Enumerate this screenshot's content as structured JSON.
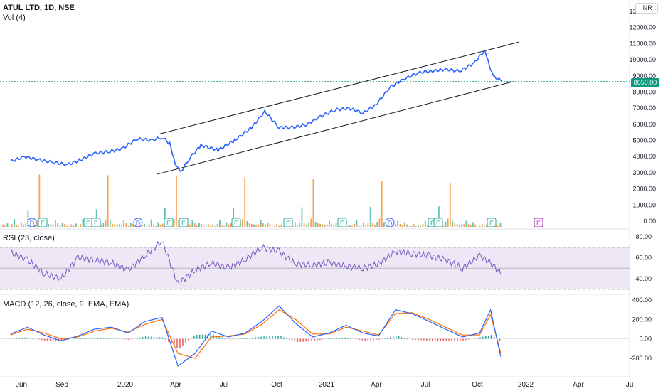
{
  "header": {
    "title": "ATUL LTD, 1D, NSE",
    "volume_label": "Vol (4)",
    "currency": "INR"
  },
  "price_tag": "8650.00",
  "rsi_label": "RSI (23, close)",
  "macd_label": "MACD (12, 26, close, 9, EMA, EMA)",
  "colors": {
    "price_line": "#2962ff",
    "channel": "#131722",
    "rsi_line": "#7e57c2",
    "rsi_band": "#ede7f6",
    "macd_line": "#2962ff",
    "signal_line": "#ff6d00",
    "hist_up": "#26a69a",
    "hist_down": "#ef5350",
    "vol_up": "#26a69a",
    "vol_down": "#f57c00",
    "last_price": "#089981",
    "earnings": "#26a69a",
    "dividend": "#2962ff"
  },
  "chart_data": [
    {
      "type": "line",
      "pane": "price",
      "x": [
        "2019-05-20",
        "2019-06-15",
        "2019-07-10",
        "2019-08-05",
        "2019-09-01",
        "2019-09-25",
        "2019-10-20",
        "2019-11-15",
        "2019-12-10",
        "2020-01-05",
        "2020-02-01",
        "2020-02-20",
        "2020-03-05",
        "2020-03-15",
        "2020-03-24",
        "2020-04-10",
        "2020-05-01",
        "2020-06-01",
        "2020-07-01",
        "2020-08-01",
        "2020-08-25",
        "2020-09-20",
        "2020-10-15",
        "2020-11-10",
        "2020-12-05",
        "2021-01-01",
        "2021-01-25",
        "2021-02-20",
        "2021-03-15",
        "2021-04-10",
        "2021-05-05",
        "2021-06-01",
        "2021-06-25",
        "2021-07-20",
        "2021-08-15",
        "2021-09-10",
        "2021-09-30",
        "2021-10-10",
        "2021-10-20",
        "2021-10-31"
      ],
      "y": [
        3700,
        4000,
        3800,
        3650,
        3500,
        3800,
        4200,
        4300,
        4500,
        5100,
        5000,
        5200,
        4800,
        3600,
        3000,
        3900,
        4700,
        4400,
        5000,
        5800,
        6800,
        5800,
        5800,
        6000,
        6500,
        6900,
        7000,
        6700,
        7200,
        8300,
        8800,
        9200,
        9300,
        9400,
        9300,
        9800,
        10600,
        9300,
        8900,
        8650
      ],
      "yticks": [
        "0.00",
        "1000.00",
        "2000.00",
        "3000.00",
        "4000.00",
        "5000.00",
        "6000.00",
        "7000.00",
        "8000.00",
        "9000.00",
        "10000.00",
        "11000.00",
        "12000.00",
        "13000.00"
      ],
      "ylim": [
        0,
        13000
      ],
      "last_value": 8650
    },
    {
      "type": "line",
      "pane": "price-channel",
      "lines": [
        {
          "x": [
            "2020-02-15",
            "2021-12-01"
          ],
          "y": [
            5400,
            11100
          ]
        },
        {
          "x": [
            "2020-02-10",
            "2021-11-20"
          ],
          "y": [
            2900,
            8650
          ]
        }
      ]
    },
    {
      "type": "bar",
      "pane": "volume",
      "values_sample": [
        0.1,
        0.2,
        0.1,
        0.3,
        0.1,
        0.2,
        0.5,
        0.2,
        0.1,
        0.3,
        0.2,
        0.4,
        1.2,
        0.3,
        0.2,
        0.4,
        0.5,
        3.0,
        0.6,
        0.3,
        0.2,
        0.2,
        0.3,
        0.2,
        0.4,
        0.3,
        0.2,
        0.3,
        0.2,
        0.1
      ],
      "unit": "relative"
    },
    {
      "type": "line",
      "pane": "rsi",
      "x": [
        "2019-05-20",
        "2019-06-20",
        "2019-07-20",
        "2019-08-20",
        "2019-09-20",
        "2019-10-20",
        "2019-11-20",
        "2019-12-20",
        "2020-01-20",
        "2020-02-20",
        "2020-03-20",
        "2020-04-20",
        "2020-05-20",
        "2020-06-20",
        "2020-07-20",
        "2020-08-20",
        "2020-09-20",
        "2020-10-20",
        "2020-11-20",
        "2020-12-20",
        "2021-01-20",
        "2021-02-20",
        "2021-03-20",
        "2021-04-20",
        "2021-05-20",
        "2021-06-20",
        "2021-07-20",
        "2021-08-20",
        "2021-09-20",
        "2021-10-10",
        "2021-10-31"
      ],
      "y": [
        65,
        58,
        45,
        40,
        60,
        58,
        55,
        48,
        62,
        76,
        35,
        48,
        55,
        50,
        58,
        70,
        66,
        54,
        53,
        55,
        52,
        50,
        54,
        66,
        64,
        62,
        58,
        50,
        62,
        55,
        44
      ],
      "yticks": [
        "40.00",
        "60.00",
        "80.00"
      ],
      "ylim": [
        28,
        82
      ],
      "bands": [
        70,
        30
      ]
    },
    {
      "type": "line",
      "pane": "macd",
      "x": [
        "2019-05-20",
        "2019-06-20",
        "2019-07-20",
        "2019-08-20",
        "2019-09-20",
        "2019-10-20",
        "2019-11-20",
        "2019-12-20",
        "2020-01-20",
        "2020-02-20",
        "2020-03-20",
        "2020-04-20",
        "2020-05-20",
        "2020-06-20",
        "2020-07-20",
        "2020-08-20",
        "2020-09-20",
        "2020-10-20",
        "2020-11-20",
        "2020-12-20",
        "2021-01-20",
        "2021-02-20",
        "2021-03-20",
        "2021-04-20",
        "2021-05-20",
        "2021-06-20",
        "2021-07-20",
        "2021-08-20",
        "2021-09-20",
        "2021-10-10",
        "2021-10-31"
      ],
      "series": [
        {
          "values": [
            50,
            120,
            40,
            -20,
            30,
            100,
            120,
            60,
            180,
            220,
            -280,
            -150,
            80,
            20,
            60,
            180,
            340,
            160,
            20,
            60,
            140,
            60,
            30,
            300,
            260,
            180,
            100,
            20,
            60,
            300,
            -250
          ]
        },
        {
          "values": [
            40,
            100,
            60,
            0,
            20,
            80,
            110,
            70,
            150,
            200,
            -150,
            -200,
            20,
            30,
            50,
            150,
            300,
            200,
            50,
            50,
            120,
            80,
            40,
            260,
            270,
            200,
            120,
            40,
            40,
            250,
            -200
          ]
        }
      ],
      "yticks": [
        "-200.00",
        "0.00",
        "200.00",
        "400.00"
      ],
      "ylim": [
        -320,
        420
      ]
    }
  ],
  "x_axis": {
    "labels": [
      "Jun",
      "Sep",
      "2020",
      "Apr",
      "Jul",
      "Oct",
      "2021",
      "Apr",
      "Jul",
      "Oct",
      "2022",
      "Apr",
      "Ju"
    ]
  },
  "events": [
    {
      "type": "D",
      "label": "D"
    },
    {
      "type": "E",
      "label": "E"
    },
    {
      "type": "E",
      "label": "E"
    },
    {
      "type": "E",
      "label": "E"
    },
    {
      "type": "D",
      "label": "D"
    },
    {
      "type": "E",
      "label": "E"
    },
    {
      "type": "E",
      "label": "E"
    },
    {
      "type": "E",
      "label": "E"
    },
    {
      "type": "E",
      "label": "E"
    },
    {
      "type": "E",
      "label": "E"
    },
    {
      "type": "D",
      "label": "D"
    },
    {
      "type": "E",
      "label": "E"
    },
    {
      "type": "E",
      "label": "E"
    },
    {
      "type": "E",
      "label": "E"
    }
  ]
}
